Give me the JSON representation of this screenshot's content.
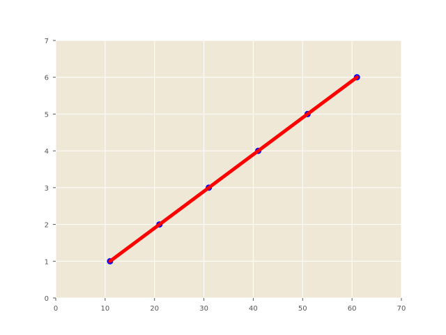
{
  "chart_data": {
    "type": "line",
    "title": "",
    "xlabel": "",
    "ylabel": "",
    "xlim": [
      0,
      70
    ],
    "ylim": [
      0,
      7
    ],
    "x_ticks": [
      0,
      10,
      20,
      30,
      40,
      50,
      60,
      70
    ],
    "y_ticks": [
      0,
      1,
      2,
      3,
      4,
      5,
      6,
      7
    ],
    "x_tick_labels": [
      "0",
      "10",
      "20",
      "30",
      "40",
      "50",
      "60",
      "70"
    ],
    "y_tick_labels": [
      "0",
      "1",
      "2",
      "3",
      "4",
      "5",
      "6",
      "7"
    ],
    "grid": true,
    "background": "#efe8d7",
    "gridline_color": "#ffffff",
    "series": [
      {
        "kind": "scatter",
        "color": "#0000ff",
        "points": [
          [
            11,
            1
          ],
          [
            21,
            2
          ],
          [
            31,
            3
          ],
          [
            41,
            4
          ],
          [
            51,
            5
          ],
          [
            61,
            6
          ]
        ]
      },
      {
        "kind": "line",
        "color": "#ff0000",
        "points": [
          [
            11,
            1
          ],
          [
            21,
            2
          ],
          [
            31,
            3
          ],
          [
            41,
            4
          ],
          [
            51,
            5
          ],
          [
            61,
            6
          ]
        ]
      }
    ]
  }
}
